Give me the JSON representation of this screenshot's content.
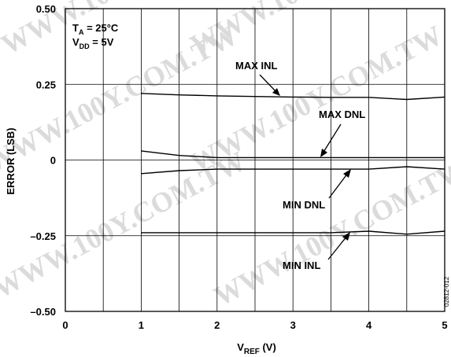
{
  "chart_data": {
    "type": "line",
    "xlabel_main": "V",
    "xlabel_sub": "REF",
    "xlabel_unit": " (V)",
    "ylabel": "ERROR (LSB)",
    "xlim": [
      0,
      5
    ],
    "ylim": [
      -0.5,
      0.5
    ],
    "x_ticks": [
      "0",
      "1",
      "2",
      "3",
      "4",
      "5"
    ],
    "y_ticks": [
      "0.50",
      "0.25",
      "0",
      "–0.25",
      "–0.50"
    ],
    "y_tick_values": [
      0.5,
      0.25,
      0,
      -0.25,
      -0.5
    ],
    "grid": true,
    "x": [
      1,
      1.5,
      2,
      2.5,
      3,
      3.5,
      4,
      4.5,
      5
    ],
    "series": [
      {
        "name": "MAX INL",
        "values": [
          0.22,
          0.215,
          0.212,
          0.21,
          0.208,
          0.207,
          0.207,
          0.2,
          0.208
        ]
      },
      {
        "name": "MAX DNL",
        "values": [
          0.03,
          0.015,
          0.008,
          0.008,
          0.008,
          0.008,
          0.008,
          0.008,
          0.008
        ]
      },
      {
        "name": "MIN DNL",
        "values": [
          -0.045,
          -0.035,
          -0.03,
          -0.03,
          -0.03,
          -0.03,
          -0.03,
          -0.022,
          -0.03
        ]
      },
      {
        "name": "MIN INL",
        "values": [
          -0.24,
          -0.24,
          -0.24,
          -0.24,
          -0.24,
          -0.24,
          -0.235,
          -0.245,
          -0.235
        ]
      }
    ],
    "conditions": {
      "ta_main": "T",
      "ta_sub": "A",
      "ta_value": " = 25°C",
      "vdd_main": "V",
      "vdd_sub": "DD",
      "vdd_value": " = 5V"
    },
    "figure_code": "02812-012"
  }
}
